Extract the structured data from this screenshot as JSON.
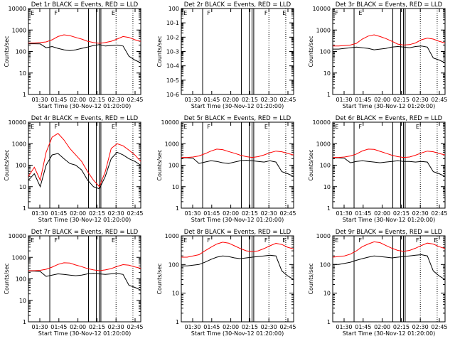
{
  "chart_data": [
    {
      "type": "line",
      "title": "Det 1r  BLACK = Events, RED = LLD",
      "ylabel": "Counts/sec",
      "xlabel": "Start Time (30-Nov-12 01:20:00)",
      "ylim": [
        1,
        10000
      ],
      "yscale": "log",
      "yticks": [
        "1",
        "10",
        "100",
        "1000",
        "10000"
      ],
      "xticks": [
        "01:30",
        "01:45",
        "02:00",
        "02:15",
        "02:30",
        "02:45"
      ],
      "markers": [
        "E",
        "F",
        "E"
      ],
      "x": [
        1,
        2,
        3,
        4,
        5,
        6,
        7,
        8,
        9,
        10,
        11,
        12,
        13,
        14,
        15,
        16,
        17,
        18,
        19,
        20
      ],
      "series": [
        {
          "name": "BLACK = Events",
          "values": [
            230,
            230,
            225,
            150,
            170,
            140,
            120,
            110,
            120,
            140,
            160,
            190,
            210,
            180,
            190,
            200,
            180,
            60,
            40,
            30
          ]
        },
        {
          "name": "RED = LLD",
          "values": [
            250,
            250,
            260,
            280,
            350,
            500,
            600,
            550,
            450,
            380,
            300,
            260,
            240,
            260,
            300,
            380,
            500,
            450,
            350,
            300
          ]
        }
      ]
    },
    {
      "type": "line",
      "title": "Det 2r  BLACK = Events, RED = LLD",
      "ylabel": "Counts/sec",
      "xlabel": "",
      "ylim": [
        1e-06,
        1
      ],
      "yscale": "log",
      "yticks": [
        "10-6",
        "10-5",
        "10-4",
        "10-3",
        "10-2",
        "10-1",
        "100"
      ],
      "xticks": [],
      "markers": [
        "E",
        "F",
        "F",
        "E"
      ],
      "x": [],
      "series": []
    },
    {
      "type": "line",
      "title": "Det 3r  BLACK = Events, RED = LLD",
      "ylabel": "Counts/sec",
      "xlabel": "",
      "ylim": [
        1,
        10000
      ],
      "yscale": "log",
      "yticks": [
        "1",
        "10",
        "100",
        "1000",
        "10000"
      ],
      "xticks": [],
      "markers": [
        "F",
        "E"
      ],
      "x": [
        1,
        2,
        3,
        4,
        5,
        6,
        7,
        8,
        9,
        10,
        11,
        12,
        13,
        14,
        15,
        16,
        17,
        18,
        19,
        20
      ],
      "series": [
        {
          "name": "BLACK = Events",
          "values": [
            130,
            130,
            140,
            150,
            160,
            150,
            140,
            120,
            130,
            140,
            160,
            170,
            160,
            150,
            170,
            180,
            160,
            50,
            40,
            30
          ]
        },
        {
          "name": "RED = LLD",
          "values": [
            180,
            180,
            190,
            200,
            240,
            380,
            520,
            600,
            500,
            400,
            300,
            220,
            200,
            210,
            250,
            350,
            420,
            380,
            300,
            250
          ]
        }
      ]
    },
    {
      "type": "line",
      "title": "Det 4r  BLACK = Events, RED = LLD",
      "ylabel": "Counts/sec",
      "xlabel": "",
      "ylim": [
        1,
        10000
      ],
      "yscale": "log",
      "yticks": [
        "1",
        "10",
        "100",
        "1000",
        "10000"
      ],
      "xticks": [],
      "markers": [
        "E",
        "F",
        "E"
      ],
      "x": [
        1,
        2,
        3,
        4,
        5,
        6,
        7,
        8,
        9,
        10,
        11,
        12,
        13,
        14,
        15,
        16,
        17,
        18,
        19,
        20
      ],
      "series": [
        {
          "name": "BLACK = Events",
          "values": [
            20,
            40,
            10,
            100,
            300,
            350,
            200,
            120,
            100,
            60,
            20,
            10,
            8,
            30,
            200,
            400,
            300,
            200,
            150,
            100
          ]
        },
        {
          "name": "RED = LLD",
          "values": [
            30,
            80,
            20,
            400,
            2000,
            3000,
            1500,
            600,
            300,
            150,
            50,
            20,
            10,
            50,
            600,
            1000,
            800,
            500,
            300,
            150
          ]
        }
      ]
    },
    {
      "type": "line",
      "title": "Det 5r  BLACK = Events, RED = LLD",
      "ylabel": "Counts/sec",
      "xlabel": "",
      "ylim": [
        1,
        10000
      ],
      "yscale": "log",
      "yticks": [
        "1",
        "10",
        "100",
        "1000",
        "10000"
      ],
      "xticks": [],
      "markers": [
        "E",
        "F",
        "E"
      ],
      "x": [
        1,
        2,
        3,
        4,
        5,
        6,
        7,
        8,
        9,
        10,
        11,
        12,
        13,
        14,
        15,
        16,
        17,
        18,
        19,
        20
      ],
      "series": [
        {
          "name": "BLACK = Events",
          "values": [
            220,
            220,
            210,
            120,
            140,
            160,
            150,
            130,
            120,
            140,
            160,
            170,
            160,
            150,
            140,
            160,
            140,
            50,
            40,
            30
          ]
        },
        {
          "name": "RED = LLD",
          "values": [
            230,
            230,
            240,
            270,
            340,
            450,
            560,
            530,
            430,
            360,
            290,
            250,
            230,
            250,
            300,
            380,
            450,
            420,
            350,
            300
          ]
        }
      ]
    },
    {
      "type": "line",
      "title": "Det 6r  BLACK = Events, RED = LLD",
      "ylabel": "Counts/sec",
      "xlabel": "",
      "ylim": [
        1,
        10000
      ],
      "yscale": "log",
      "yticks": [
        "1",
        "10",
        "100",
        "1000",
        "10000"
      ],
      "xticks": [],
      "markers": [
        "E",
        "F",
        "E"
      ],
      "x": [
        1,
        2,
        3,
        4,
        5,
        6,
        7,
        8,
        9,
        10,
        11,
        12,
        13,
        14,
        15,
        16,
        17,
        18,
        19,
        20
      ],
      "series": [
        {
          "name": "BLACK = Events",
          "values": [
            220,
            220,
            210,
            130,
            150,
            160,
            150,
            140,
            130,
            140,
            150,
            160,
            150,
            150,
            140,
            150,
            140,
            50,
            40,
            30
          ]
        },
        {
          "name": "RED = LLD",
          "values": [
            230,
            230,
            240,
            270,
            330,
            460,
            560,
            540,
            440,
            360,
            290,
            250,
            230,
            240,
            290,
            370,
            450,
            420,
            350,
            300
          ]
        }
      ]
    },
    {
      "type": "line",
      "title": "Det 7r  BLACK = Events, RED = LLD",
      "ylabel": "Counts/sec",
      "xlabel": "",
      "ylim": [
        1,
        10000
      ],
      "yscale": "log",
      "yticks": [
        "1",
        "10",
        "100",
        "1000",
        "10000"
      ],
      "xticks": [],
      "markers": [
        "E",
        "F",
        "E"
      ],
      "x": [
        1,
        2,
        3,
        4,
        5,
        6,
        7,
        8,
        9,
        10,
        11,
        12,
        13,
        14,
        15,
        16,
        17,
        18,
        19,
        20
      ],
      "series": [
        {
          "name": "BLACK = Events",
          "values": [
            230,
            230,
            220,
            130,
            150,
            170,
            160,
            150,
            140,
            150,
            170,
            180,
            170,
            160,
            170,
            180,
            160,
            50,
            40,
            30
          ]
        },
        {
          "name": "RED = LLD",
          "values": [
            240,
            240,
            250,
            280,
            350,
            470,
            560,
            540,
            440,
            370,
            300,
            260,
            240,
            260,
            300,
            380,
            460,
            430,
            360,
            310
          ]
        }
      ]
    },
    {
      "type": "line",
      "title": "Det 8r  BLACK = Events, RED = LLD",
      "ylabel": "Counts/sec",
      "xlabel": "",
      "ylim": [
        1,
        1000
      ],
      "yscale": "log",
      "yticks": [
        "1",
        "10",
        "100",
        "1000"
      ],
      "xticks": [],
      "markers": [
        "E",
        "F",
        "F",
        "E"
      ],
      "x": [
        1,
        2,
        3,
        4,
        5,
        6,
        7,
        8,
        9,
        10,
        11,
        12,
        13,
        14,
        15,
        16,
        17,
        18,
        19,
        20
      ],
      "series": [
        {
          "name": "BLACK = Events",
          "values": [
            90,
            90,
            95,
            100,
            120,
            150,
            180,
            200,
            190,
            170,
            160,
            170,
            180,
            190,
            200,
            210,
            200,
            60,
            40,
            30
          ]
        },
        {
          "name": "RED = LLD",
          "values": [
            180,
            180,
            200,
            220,
            300,
            400,
            520,
            600,
            560,
            450,
            360,
            300,
            280,
            300,
            360,
            450,
            550,
            500,
            400,
            350
          ]
        }
      ]
    },
    {
      "type": "line",
      "title": "Det 9r  BLACK = Events, RED = LLD",
      "ylabel": "Counts/sec",
      "xlabel": "",
      "ylim": [
        1,
        1000
      ],
      "yscale": "log",
      "yticks": [
        "1",
        "10",
        "100",
        "1000"
      ],
      "xticks": [],
      "markers": [
        "E",
        "F",
        "F",
        "E"
      ],
      "x": [
        1,
        2,
        3,
        4,
        5,
        6,
        7,
        8,
        9,
        10,
        11,
        12,
        13,
        14,
        15,
        16,
        17,
        18,
        19,
        20
      ],
      "series": [
        {
          "name": "BLACK = Events",
          "values": [
            100,
            100,
            110,
            120,
            140,
            160,
            180,
            200,
            190,
            180,
            170,
            180,
            190,
            200,
            210,
            220,
            200,
            60,
            40,
            30
          ]
        },
        {
          "name": "RED = LLD",
          "values": [
            180,
            190,
            200,
            230,
            300,
            420,
            520,
            620,
            580,
            460,
            370,
            310,
            290,
            310,
            370,
            460,
            560,
            520,
            420,
            360
          ]
        }
      ]
    }
  ]
}
